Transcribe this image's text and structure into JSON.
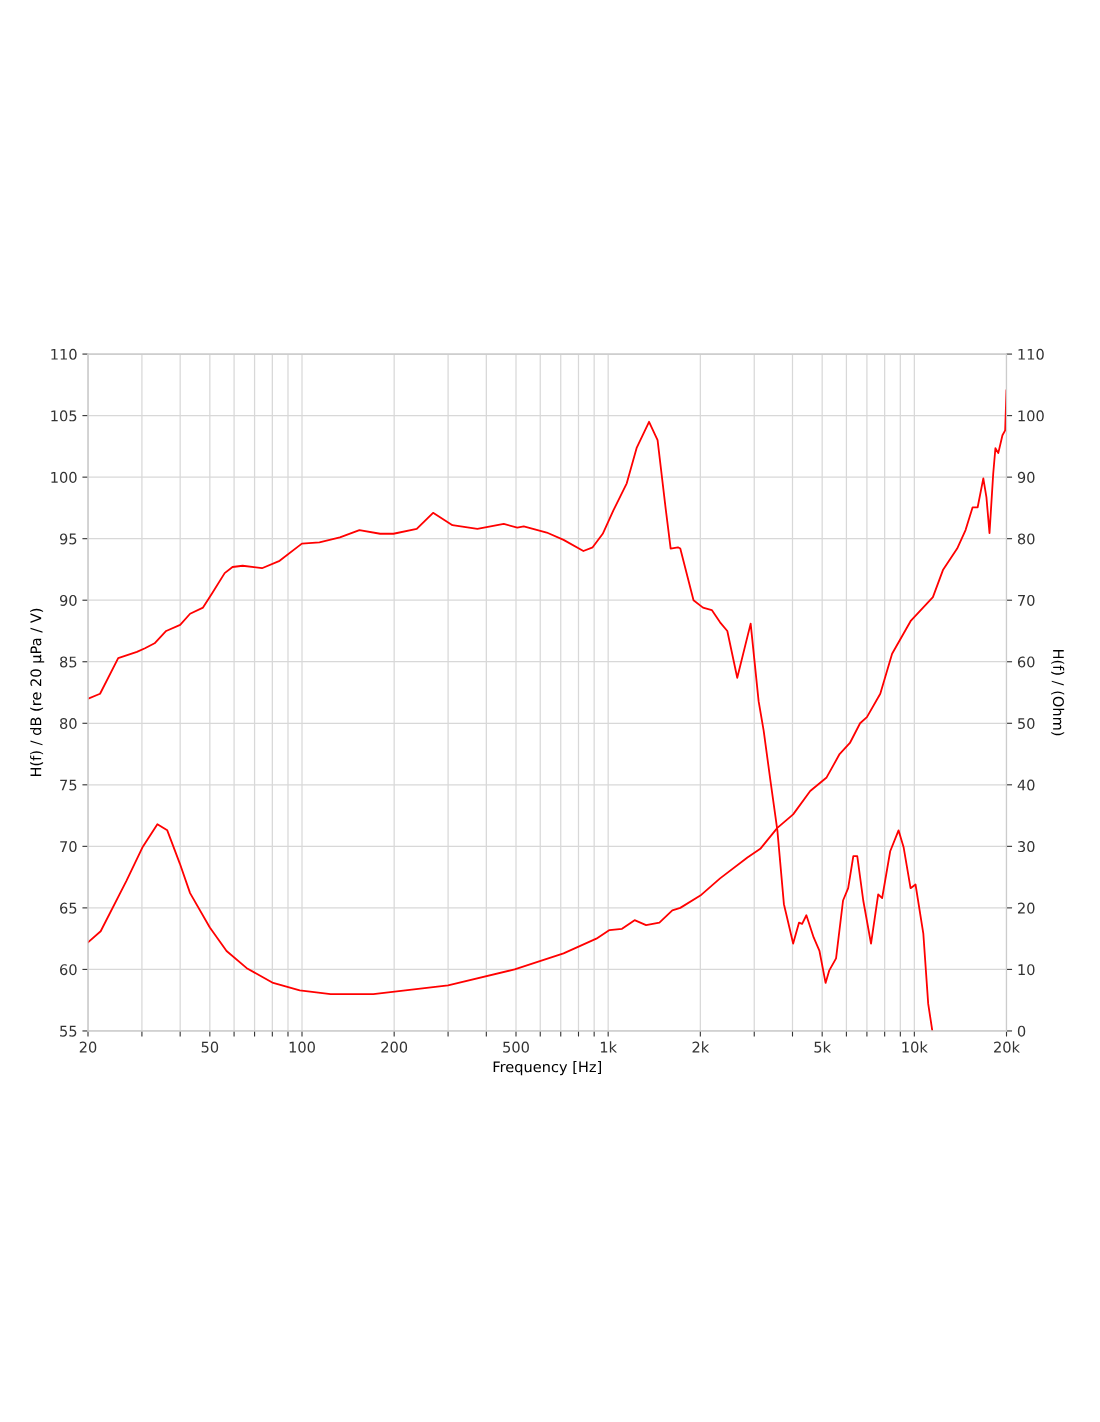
{
  "chart_data": {
    "type": "line",
    "xlabel": "Frequency [Hz]",
    "ylabel": "H(f) / dB (re 20 µPa / V)",
    "y2label": "H(f) / (Ohm)",
    "log": "x",
    "grid": true,
    "marker": "none",
    "line_style": "solid",
    "xlim": [
      20,
      20000
    ],
    "xticks": [
      20,
      {
        "value": 30,
        "label": null
      },
      {
        "value": 40,
        "label": null
      },
      50,
      {
        "value": 60,
        "label": null
      },
      {
        "value": 70,
        "label": null
      },
      {
        "value": 80,
        "label": null
      },
      {
        "value": 90,
        "label": null
      },
      100,
      200,
      {
        "value": 300,
        "label": null
      },
      {
        "value": 400,
        "label": null
      },
      500,
      {
        "value": 600,
        "label": null
      },
      {
        "value": 700,
        "label": null
      },
      {
        "value": 800,
        "label": null
      },
      {
        "value": 900,
        "label": null
      },
      {
        "value": 1000,
        "label": "1k"
      },
      {
        "value": 2000,
        "label": "2k"
      },
      {
        "value": 3000,
        "label": null
      },
      {
        "value": 4000,
        "label": null
      },
      {
        "value": 5000,
        "label": "5k"
      },
      {
        "value": 6000,
        "label": null
      },
      {
        "value": 7000,
        "label": null
      },
      {
        "value": 8000,
        "label": null
      },
      {
        "value": 9000,
        "label": null
      },
      {
        "value": 10000,
        "label": "10k"
      },
      {
        "value": 20000,
        "label": "20k"
      }
    ],
    "ylim": [
      55,
      110
    ],
    "yticks": [
      55,
      60,
      65,
      70,
      75,
      80,
      85,
      90,
      95,
      100,
      105,
      110
    ],
    "y2lim": [
      0,
      110
    ],
    "y2ticks": [
      0,
      10,
      20,
      30,
      40,
      50,
      60,
      70,
      80,
      90,
      100,
      110
    ],
    "series": [
      {
        "color": "#ff0000",
        "x": [
          20,
          21.9,
          25.1,
          28.9,
          30.7,
          33,
          36,
          40,
          43.1,
          47.5,
          51,
          55.9,
          59.3,
          64,
          74,
          84.5,
          99.9,
          114,
          133,
          154,
          180,
          199,
          237,
          268,
          310,
          374,
          456,
          505,
          530,
          630,
          715,
          830,
          890,
          960,
          1040,
          1150,
          1240,
          1360,
          1450,
          1540,
          1600,
          1690,
          1720,
          1900,
          2040,
          2180,
          2320,
          2450,
          2640,
          2920,
          3100,
          3220,
          3390,
          3570,
          3750,
          4020,
          4200,
          4300,
          4440,
          4690,
          4900,
          5130,
          5270,
          5550,
          5850,
          6080,
          6320,
          6510,
          6810,
          7220,
          7620,
          7850,
          8340,
          8880,
          9230,
          9720,
          10090,
          10700,
          11100,
          11450
        ],
        "values": [
          82.0,
          82.4,
          85.3,
          85.8,
          86.1,
          86.5,
          87.5,
          88.0,
          88.9,
          89.4,
          90.6,
          92.2,
          92.7,
          92.8,
          92.6,
          93.2,
          94.6,
          94.7,
          95.1,
          95.7,
          95.4,
          95.4,
          95.8,
          97.1,
          96.1,
          95.8,
          96.2,
          95.9,
          96.0,
          95.5,
          94.9,
          94.0,
          94.3,
          95.4,
          97.3,
          99.5,
          102.4,
          104.5,
          103.0,
          97.5,
          94.2,
          94.3,
          94.2,
          90.0,
          89.4,
          89.2,
          88.2,
          87.5,
          83.7,
          88.1,
          81.8,
          79.4,
          75.3,
          71.3,
          65.3,
          62.1,
          63.8,
          63.7,
          64.4,
          62.6,
          61.5,
          58.9,
          59.9,
          60.9,
          65.6,
          66.6,
          69.2,
          69.2,
          65.6,
          62.1,
          66.1,
          65.8,
          69.6,
          71.3,
          69.9,
          66.6,
          66.9,
          62.9,
          57.2,
          55.0
        ]
      },
      {
        "color": "#ff0000",
        "axis": "y2",
        "x": [
          20,
          22,
          26.7,
          30.1,
          33.7,
          36.3,
          39.9,
          43.1,
          50,
          56.7,
          66,
          80.5,
          98.3,
          124,
          171,
          300,
          495,
          715,
          915,
          1010,
          1110,
          1220,
          1330,
          1470,
          1620,
          1720,
          2000,
          2320,
          2850,
          3140,
          3570,
          4020,
          4570,
          5170,
          5700,
          6160,
          6650,
          7000,
          7740,
          8460,
          9750,
          11500,
          12400,
          13800,
          14700,
          15500,
          16100,
          16800,
          17200,
          17600,
          18100,
          18400,
          18800,
          19400,
          19800,
          20000
        ],
        "values": [
          14.4,
          16.2,
          24.4,
          29.8,
          33.6,
          32.6,
          27.2,
          22.4,
          16.8,
          13.0,
          10.2,
          7.8,
          6.6,
          6.0,
          6.0,
          7.4,
          10.0,
          12.6,
          15.0,
          16.4,
          16.6,
          18.0,
          17.2,
          17.6,
          19.6,
          20.0,
          22.0,
          24.8,
          28.2,
          29.6,
          33.0,
          35.2,
          39.0,
          41.2,
          45.0,
          46.8,
          50.0,
          51.0,
          54.8,
          61.3,
          66.7,
          70.5,
          74.9,
          78.4,
          81.4,
          85.1,
          85.1,
          89.8,
          86.7,
          80.9,
          90.6,
          94.7,
          93.9,
          96.8,
          97.6,
          104.1
        ]
      }
    ]
  }
}
